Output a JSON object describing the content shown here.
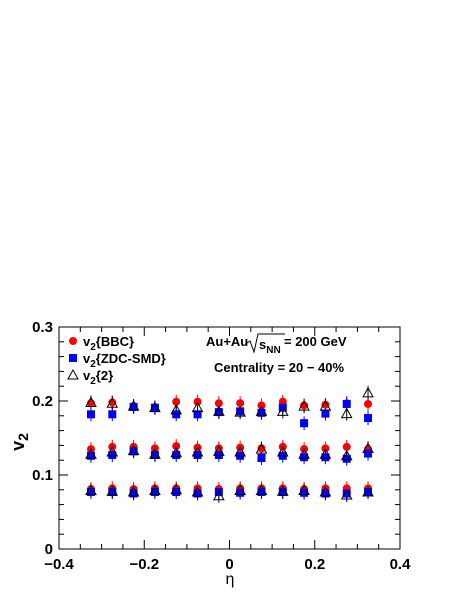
{
  "chart_data": {
    "type": "scatter",
    "xlabel": "η",
    "ylabel": "v",
    "ylabel_sub": "2",
    "xlim": [
      -0.4,
      0.4
    ],
    "ylim": [
      0,
      0.3
    ],
    "x_ticks": [
      "−0.4",
      "−0.2",
      "0",
      "0.2",
      "0.4"
    ],
    "y_ticks": [
      "0",
      "0.1",
      "0.2",
      "0.3"
    ],
    "grid": false,
    "legend_position": "top-left",
    "annotations": {
      "system_pre": "Au+Au",
      "system_s": "s",
      "system_sub": "NN",
      "system_post": " = 200 GeV",
      "centrality": "Centrality = 20 − 40%"
    },
    "legend": [
      {
        "marker": "circle",
        "pre": "v",
        "sub": "2",
        "post": "{BBC}"
      },
      {
        "marker": "square",
        "pre": "v",
        "sub": "2",
        "post": "{ZDC-SMD}"
      },
      {
        "marker": "triangle",
        "pre": "v",
        "sub": "2",
        "post": "{2}"
      }
    ],
    "colors": {
      "bbc": "#ff0000",
      "zdc": "#0000ff",
      "v22": "#000000"
    },
    "x": [
      -0.325,
      -0.275,
      -0.225,
      -0.175,
      -0.125,
      -0.075,
      -0.025,
      0.025,
      0.075,
      0.125,
      0.175,
      0.225,
      0.275,
      0.325
    ],
    "series": [
      {
        "group": "bbc",
        "bands": [
          [
            0.135,
            0.138,
            0.138,
            0.136,
            0.139,
            0.137,
            0.136,
            0.137,
            0.136,
            0.138,
            0.135,
            0.136,
            0.138,
            0.135
          ],
          [
            0.081,
            0.082,
            0.081,
            0.082,
            0.082,
            0.082,
            0.081,
            0.082,
            0.082,
            0.082,
            0.081,
            0.082,
            0.082,
            0.082
          ],
          [
            0.197,
            0.198,
            0.193,
            0.191,
            0.199,
            0.199,
            0.197,
            0.197,
            0.194,
            0.199,
            0.194,
            0.195,
            0.197,
            0.196
          ]
        ]
      },
      {
        "group": "zdc",
        "bands": [
          [
            0.126,
            0.127,
            0.132,
            0.127,
            0.127,
            0.127,
            0.127,
            0.126,
            0.123,
            0.126,
            0.124,
            0.124,
            0.122,
            0.129
          ],
          [
            0.077,
            0.077,
            0.075,
            0.077,
            0.077,
            0.075,
            0.077,
            0.076,
            0.077,
            0.077,
            0.076,
            0.075,
            0.075,
            0.077
          ],
          [
            0.182,
            0.182,
            0.192,
            0.191,
            0.182,
            0.182,
            0.185,
            0.186,
            0.184,
            0.191,
            0.17,
            0.183,
            0.196,
            0.177
          ]
        ]
      },
      {
        "group": "v22",
        "bands": [
          [
            0.128,
            0.131,
            0.133,
            0.128,
            0.13,
            0.131,
            0.132,
            0.131,
            0.135,
            0.131,
            0.128,
            0.128,
            0.126,
            0.136
          ],
          [
            0.079,
            0.078,
            0.077,
            0.079,
            0.08,
            0.077,
            0.072,
            0.079,
            0.079,
            0.078,
            0.079,
            0.077,
            0.073,
            0.077
          ],
          [
            0.198,
            0.197,
            0.193,
            0.191,
            0.188,
            0.191,
            0.186,
            0.185,
            0.186,
            0.186,
            0.193,
            0.193,
            0.183,
            0.211
          ]
        ]
      }
    ]
  }
}
